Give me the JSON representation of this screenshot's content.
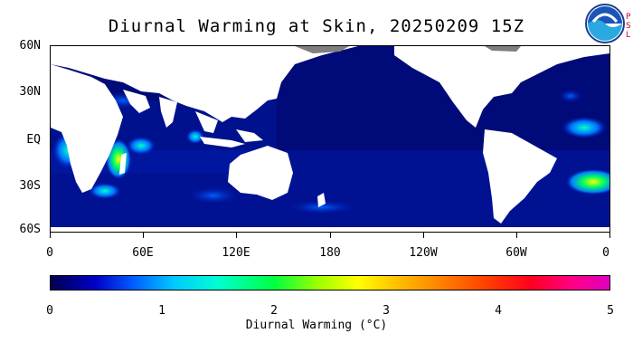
{
  "title": "Diurnal Warming at Skin, 20250209 15Z",
  "logo_text": "NOAA",
  "side_text": "PSL",
  "map": {
    "lat_labels": [
      "60N",
      "30N",
      "EQ",
      "30S",
      "60S"
    ],
    "lon_labels": [
      "0",
      "60E",
      "120E",
      "180",
      "120W",
      "60W",
      "0"
    ],
    "ocean_color": "#000a78",
    "land_color": "#ffffff",
    "ice_color": "#7f7f7f"
  },
  "colorbar": {
    "ticks": [
      "0",
      "1",
      "2",
      "3",
      "4",
      "5"
    ],
    "label": "Diurnal Warming (°C)",
    "range": [
      0,
      5
    ]
  }
}
